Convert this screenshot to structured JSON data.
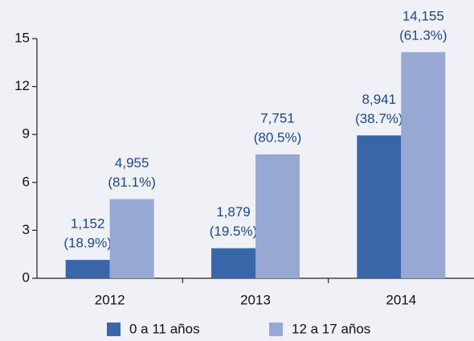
{
  "chart_data": {
    "type": "bar",
    "categories": [
      "2012",
      "2013",
      "2014"
    ],
    "series": [
      {
        "name": "0 a 11 años",
        "color": "#3966a9",
        "values": [
          1.152,
          1.879,
          8.941
        ],
        "value_labels": [
          "1,152",
          "1,879",
          "8,941"
        ],
        "share_labels": [
          "(18.9%)",
          "(19.5%)",
          "(38.7%)"
        ]
      },
      {
        "name": "12 a 17 años",
        "color": "#97a8d3",
        "values": [
          4.955,
          7.751,
          14.155
        ],
        "value_labels": [
          "4,955",
          "7,751",
          "14,155"
        ],
        "share_labels": [
          "(81.1%)",
          "(80.5%)",
          "(61.3%)"
        ]
      }
    ],
    "ylim": [
      0,
      15
    ],
    "yticks": [
      0,
      3,
      6,
      9,
      12,
      15
    ],
    "grid": false,
    "legend": "bottom"
  }
}
